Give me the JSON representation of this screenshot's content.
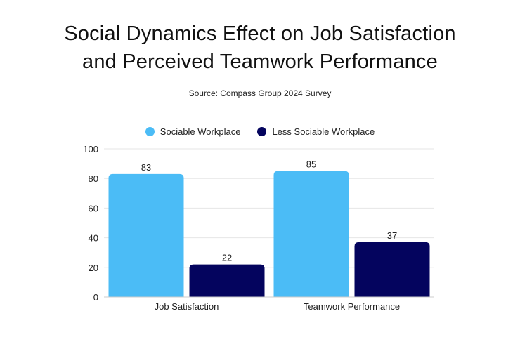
{
  "chart_data": {
    "type": "bar",
    "title": "Social Dynamics Effect on Job Satisfaction and Perceived Teamwork Performance",
    "title_lines": [
      "Social Dynamics Effect on Job Satisfaction",
      "and Perceived Teamwork Performance"
    ],
    "subtitle": "Source: Compass Group 2024 Survey",
    "categories": [
      "Job Satisfaction",
      "Teamwork Performance"
    ],
    "series": [
      {
        "name": "Sociable Workplace",
        "values": [
          83,
          85
        ],
        "color": "#4bbcf6"
      },
      {
        "name": "Less Sociable Workplace",
        "values": [
          22,
          37
        ],
        "color": "#04045e"
      }
    ],
    "ylim": [
      0,
      100
    ],
    "yticks": [
      0,
      20,
      40,
      60,
      80,
      100
    ],
    "xlabel": "",
    "ylabel": "",
    "grid": true,
    "legend": "top-center",
    "data_labels": true
  }
}
